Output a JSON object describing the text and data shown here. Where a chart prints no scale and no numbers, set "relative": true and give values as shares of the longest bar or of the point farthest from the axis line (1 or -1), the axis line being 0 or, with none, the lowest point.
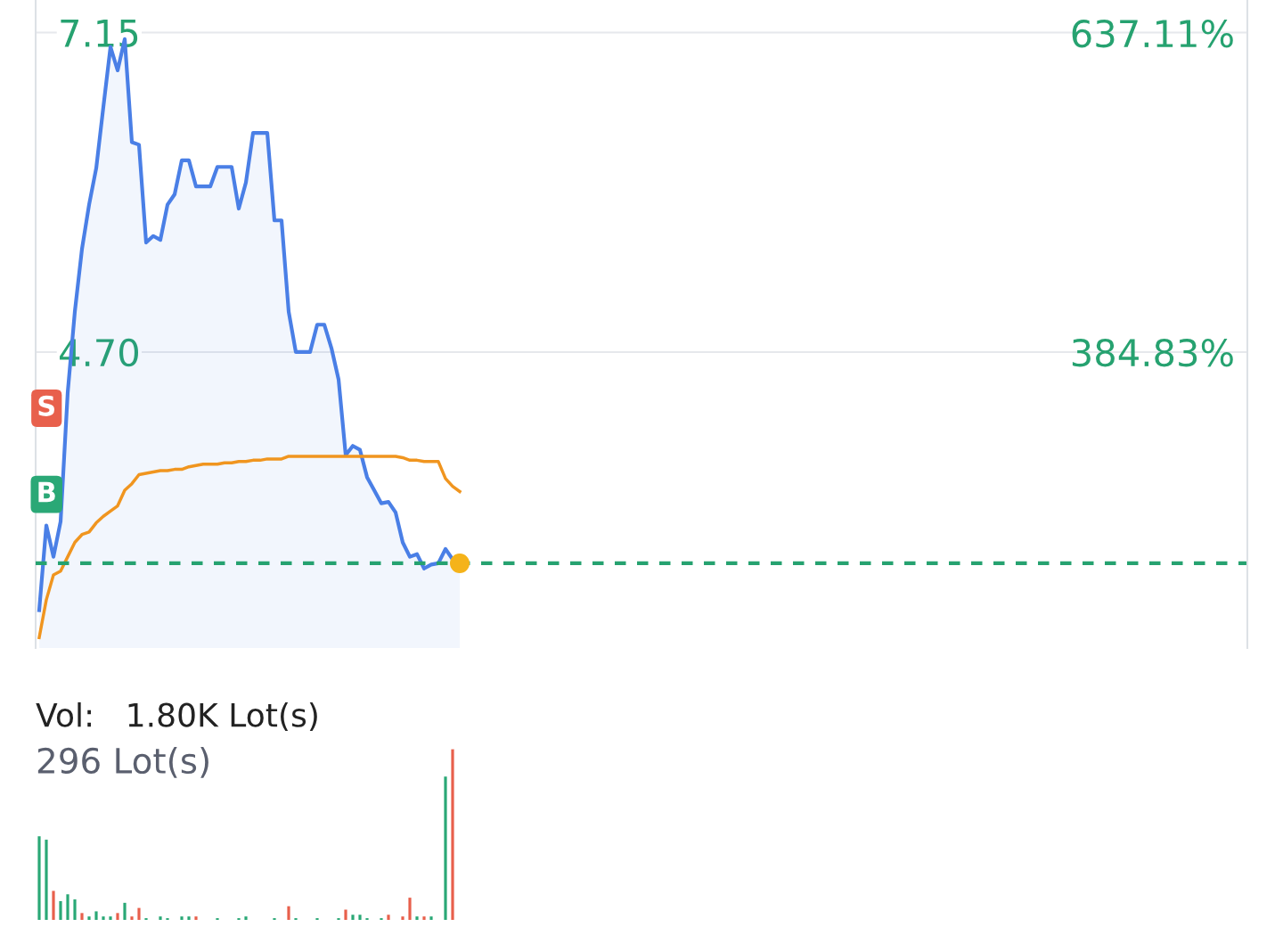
{
  "chart_data": [
    {
      "type": "area",
      "ylim": [
        2.43,
        7.4
      ],
      "yticks": [
        {
          "value": 4.7,
          "label": "4.70"
        },
        7.15
      ],
      "y2lim": [
        150.9,
        663.2
      ],
      "y2ticks": [
        {
          "value": 384.83,
          "label": "384.83%"
        },
        {
          "value": 637.11,
          "label": "637.11%"
        }
      ],
      "grid": "y",
      "categories": [
        null,
        null,
        null,
        null,
        null,
        null,
        null,
        null,
        null,
        null,
        null,
        null,
        null,
        null,
        null,
        null,
        null,
        null,
        null,
        null,
        null,
        null,
        null,
        null,
        null,
        null,
        null,
        null,
        null,
        null,
        null,
        null,
        null,
        null,
        null,
        null,
        null,
        null,
        null,
        null,
        null,
        null,
        null,
        null,
        null,
        null,
        null,
        null,
        null,
        null,
        null,
        null,
        null,
        null,
        null,
        null,
        null,
        null,
        null,
        null,
        null,
        null,
        null,
        null,
        null,
        null,
        null,
        null,
        null,
        null,
        null,
        null,
        null,
        null,
        null,
        null,
        null,
        null,
        null,
        null,
        null,
        null,
        null,
        null,
        null,
        null,
        null,
        null,
        null,
        null,
        null,
        null,
        null,
        null,
        null,
        null,
        null,
        null,
        null,
        null,
        null,
        null,
        null,
        null,
        null,
        null,
        null,
        null,
        null,
        null,
        null,
        null,
        null,
        null,
        null,
        null,
        null,
        null,
        null,
        null,
        null,
        null,
        null,
        null,
        null,
        null,
        null,
        null,
        null,
        null,
        null,
        null,
        null,
        null,
        null,
        null,
        null,
        null,
        null,
        null,
        null,
        null,
        null,
        null,
        null,
        null,
        null,
        null,
        null,
        null,
        null,
        null,
        null,
        null,
        null,
        null,
        null,
        null,
        null,
        null,
        null,
        null,
        null,
        null,
        null,
        null,
        null,
        null,
        null,
        null
      ],
      "series": [
        {
          "type": "area",
          "color": "#4a7fe6",
          "values": [
            2.72,
            3.37,
            3.13,
            3.4,
            4.39,
            5.01,
            5.49,
            5.83,
            6.11,
            6.58,
            7.04,
            6.86,
            7.1,
            6.31,
            6.29,
            5.54,
            5.59,
            5.56,
            5.83,
            5.91,
            6.17,
            6.17,
            5.97,
            5.97,
            5.97,
            6.12,
            6.12,
            6.12,
            5.8,
            6.0,
            6.38,
            6.38,
            6.38,
            5.71,
            5.71,
            5.01,
            4.7,
            4.7,
            4.7,
            4.91,
            4.91,
            4.73,
            4.49,
            3.91,
            3.98,
            3.95,
            3.74,
            3.64,
            3.54,
            3.55,
            3.47,
            3.24,
            3.13,
            3.15,
            3.04,
            3.07,
            3.08,
            3.19,
            3.11,
            3.08,
            null,
            null,
            null,
            null,
            null,
            null,
            null,
            null,
            null,
            null,
            null,
            null,
            null,
            null,
            null,
            null,
            null,
            null,
            null,
            null,
            null,
            null,
            null,
            null,
            null,
            null,
            null,
            null,
            null,
            null,
            null,
            null,
            null,
            null,
            null,
            null,
            null,
            null,
            null,
            null,
            null,
            null,
            null,
            null,
            null,
            null,
            null,
            null,
            null,
            null,
            null,
            null,
            null,
            null,
            null,
            null,
            null,
            null,
            null,
            null,
            null,
            null,
            null,
            null,
            null,
            null,
            null,
            null,
            null,
            null,
            null,
            null,
            null,
            null,
            null,
            null,
            null,
            null,
            null,
            null,
            null,
            null,
            null,
            null,
            null,
            null,
            null,
            null,
            null,
            null,
            null,
            null,
            null,
            null,
            null,
            null,
            null,
            null,
            null,
            null,
            null,
            null,
            null,
            null,
            null,
            null,
            null,
            null,
            null,
            null
          ]
        },
        {
          "type": "line",
          "color": "#f0951f",
          "values": [
            2.51,
            2.8,
            2.99,
            3.02,
            3.13,
            3.24,
            3.3,
            3.32,
            3.39,
            3.44,
            3.48,
            3.52,
            3.64,
            3.69,
            3.76,
            3.77,
            3.78,
            3.79,
            3.79,
            3.8,
            3.8,
            3.82,
            3.83,
            3.84,
            3.84,
            3.84,
            3.85,
            3.85,
            3.86,
            3.86,
            3.87,
            3.87,
            3.88,
            3.88,
            3.88,
            3.9,
            3.9,
            3.9,
            3.9,
            3.9,
            3.9,
            3.9,
            3.9,
            3.9,
            3.9,
            3.9,
            3.9,
            3.9,
            3.9,
            3.9,
            3.9,
            3.89,
            3.87,
            3.87,
            3.86,
            3.86,
            3.86,
            3.73,
            3.67,
            3.63,
            null,
            null,
            null,
            null,
            null,
            null,
            null,
            null,
            null,
            null,
            null,
            null,
            null,
            null,
            null,
            null,
            null,
            null,
            null,
            null,
            null,
            null,
            null,
            null,
            null,
            null,
            null,
            null,
            null,
            null,
            null,
            null,
            null,
            null,
            null,
            null,
            null,
            null,
            null,
            null,
            null,
            null,
            null,
            null,
            null,
            null,
            null,
            null,
            null,
            null,
            null,
            null,
            null,
            null,
            null,
            null,
            null,
            null,
            null,
            null,
            null,
            null,
            null,
            null,
            null,
            null,
            null,
            null,
            null,
            null,
            null,
            null,
            null,
            null,
            null,
            null,
            null,
            null,
            null,
            null,
            null,
            null,
            null,
            null,
            null,
            null,
            null,
            null,
            null,
            null,
            null,
            null,
            null,
            null,
            null,
            null,
            null,
            null,
            null,
            null,
            null,
            null,
            null,
            null,
            null,
            null,
            null,
            null,
            null,
            null
          ]
        },
        {
          "type": "scatter",
          "color": "#f5b31a",
          "marker": "circle",
          "values": [
            null,
            null,
            null,
            null,
            null,
            null,
            null,
            null,
            null,
            null,
            null,
            null,
            null,
            null,
            null,
            null,
            null,
            null,
            null,
            null,
            null,
            null,
            null,
            null,
            null,
            null,
            null,
            null,
            null,
            null,
            null,
            null,
            null,
            null,
            null,
            null,
            null,
            null,
            null,
            null,
            null,
            null,
            null,
            null,
            null,
            null,
            null,
            null,
            null,
            null,
            null,
            null,
            null,
            null,
            null,
            null,
            null,
            null,
            null,
            3.08,
            null,
            null,
            null,
            null,
            null,
            null,
            null,
            null,
            null,
            null,
            null,
            null,
            null,
            null,
            null,
            null,
            null,
            null,
            null,
            null,
            null,
            null,
            null,
            null,
            null,
            null,
            null,
            null,
            null,
            null,
            null,
            null,
            null,
            null,
            null,
            null,
            null,
            null,
            null,
            null,
            null,
            null,
            null,
            null,
            null,
            null,
            null,
            null,
            null,
            null,
            null,
            null,
            null,
            null,
            null,
            null,
            null,
            null,
            null,
            null,
            null,
            null,
            null,
            null,
            null,
            null,
            null,
            null,
            null,
            null,
            null,
            null,
            null,
            null,
            null,
            null,
            null,
            null,
            null,
            null,
            null,
            null,
            null,
            null,
            null,
            null,
            null,
            null,
            null,
            null,
            null,
            null,
            null,
            null,
            null,
            null,
            null,
            null,
            null,
            null,
            null,
            null,
            null,
            null,
            null,
            null,
            null,
            null,
            null,
            null
          ]
        }
      ],
      "ref_lines": [
        {
          "axis": "y",
          "value": 3.08,
          "color": "#26a270",
          "line_style": "dashed"
        }
      ],
      "annotations": [
        "B",
        "S"
      ]
    },
    {
      "type": "bar",
      "title": "Vol:   1.80K Lot(s)",
      "relative": true,
      "categories": [
        null,
        null,
        null,
        null,
        null,
        null,
        null,
        null,
        null,
        null,
        null,
        null,
        null,
        null,
        null,
        null,
        null,
        null,
        null,
        null,
        null,
        null,
        null,
        null,
        null,
        null,
        null,
        null,
        null,
        null,
        null,
        null,
        null,
        null,
        null,
        null,
        null,
        null,
        null,
        null,
        null,
        null,
        null,
        null,
        null,
        null,
        null,
        null,
        null,
        null,
        null,
        null,
        null,
        null,
        null,
        null,
        null,
        null,
        null,
        null,
        null,
        null,
        null,
        null,
        null,
        null,
        null,
        null,
        null,
        null,
        null,
        null,
        null,
        null,
        null,
        null,
        null,
        null,
        null,
        null,
        null,
        null,
        null,
        null,
        null,
        null,
        null,
        null,
        null,
        null,
        null,
        null,
        null,
        null,
        null,
        null,
        null,
        null,
        null,
        null,
        null,
        null,
        null,
        null,
        null,
        null,
        null,
        null,
        null,
        null,
        null,
        null,
        null,
        null,
        null,
        null,
        null,
        null,
        null,
        null,
        null,
        null,
        null,
        null,
        null,
        null,
        null,
        null,
        null,
        null,
        null,
        null,
        null,
        null,
        null,
        null,
        null,
        null,
        null,
        null,
        null,
        null,
        null,
        null,
        null,
        null,
        null,
        null,
        null,
        null,
        null,
        null,
        null,
        null,
        null,
        null,
        null,
        null,
        null,
        null,
        null,
        null,
        null,
        null,
        null,
        null,
        null,
        null,
        null,
        null
      ],
      "series": [
        {
          "color": "#2aa876",
          "values": [
            0.49,
            0.47,
            null,
            0.11,
            0.15,
            0.12,
            null,
            0.02,
            0.05,
            0.02,
            0.02,
            null,
            0.1,
            null,
            null,
            0.01,
            null,
            0.02,
            0.01,
            null,
            0.02,
            0.02,
            null,
            null,
            null,
            0.01,
            null,
            null,
            0.01,
            0.02,
            null,
            null,
            null,
            0.01,
            null,
            null,
            0.01,
            null,
            null,
            0.01,
            null,
            null,
            0.01,
            null,
            0.03,
            0.03,
            0.01,
            null,
            0.01,
            null,
            null,
            null,
            null,
            0.02,
            null,
            0.02,
            null,
            0.84,
            null,
            null,
            null,
            null,
            null,
            null,
            null,
            null,
            null,
            null,
            null,
            null,
            null,
            null,
            null,
            null,
            null,
            null,
            null,
            null,
            null,
            null,
            null,
            null,
            null,
            null,
            null,
            null,
            null,
            null,
            null,
            null,
            null,
            null,
            null,
            null,
            null,
            null,
            null,
            null,
            null,
            null,
            null,
            null,
            null,
            null,
            null,
            null,
            null,
            null,
            null,
            null,
            null,
            null,
            null,
            null,
            null,
            null,
            null,
            null,
            null,
            null,
            null,
            null,
            null,
            null,
            null,
            null,
            null,
            null,
            null,
            null,
            null,
            null,
            null,
            null,
            null,
            null,
            null,
            null,
            null,
            null,
            null,
            null,
            null,
            null,
            null,
            null,
            null,
            null,
            null,
            null,
            null,
            null,
            null,
            null,
            null,
            null,
            null,
            null,
            null,
            null,
            null,
            null,
            null,
            null,
            null,
            null,
            null,
            null,
            null,
            null
          ]
        },
        {
          "color": "#e8604c",
          "values": [
            null,
            null,
            0.17,
            null,
            null,
            null,
            0.04,
            null,
            null,
            null,
            null,
            0.04,
            null,
            0.02,
            0.07,
            null,
            null,
            null,
            null,
            null,
            null,
            null,
            0.02,
            null,
            null,
            null,
            null,
            null,
            null,
            null,
            null,
            null,
            null,
            null,
            null,
            0.08,
            null,
            null,
            null,
            null,
            null,
            null,
            null,
            0.06,
            null,
            null,
            null,
            null,
            null,
            0.03,
            null,
            0.02,
            0.13,
            null,
            0.02,
            null,
            null,
            null,
            1,
            null,
            null,
            null,
            null,
            null,
            null,
            null,
            null,
            null,
            null,
            null,
            null,
            null,
            null,
            null,
            null,
            null,
            null,
            null,
            null,
            null,
            null,
            null,
            null,
            null,
            null,
            null,
            null,
            null,
            null,
            null,
            null,
            null,
            null,
            null,
            null,
            null,
            null,
            null,
            null,
            null,
            null,
            null,
            null,
            null,
            null,
            null,
            null,
            null,
            null,
            null,
            null,
            null,
            null,
            null,
            null,
            null,
            null,
            null,
            null,
            null,
            null,
            null,
            null,
            null,
            null,
            null,
            null,
            null,
            null,
            null,
            null,
            null,
            null,
            null,
            null,
            null,
            null,
            null,
            null,
            null,
            null,
            null,
            null,
            null,
            null,
            null,
            null,
            null,
            null,
            null,
            null,
            null,
            null,
            null,
            null,
            null,
            null,
            null,
            null,
            null,
            null,
            null,
            null,
            null,
            null,
            null,
            null,
            null,
            null,
            null
          ]
        }
      ],
      "annotations": [
        "296 Lot(s)"
      ]
    }
  ]
}
